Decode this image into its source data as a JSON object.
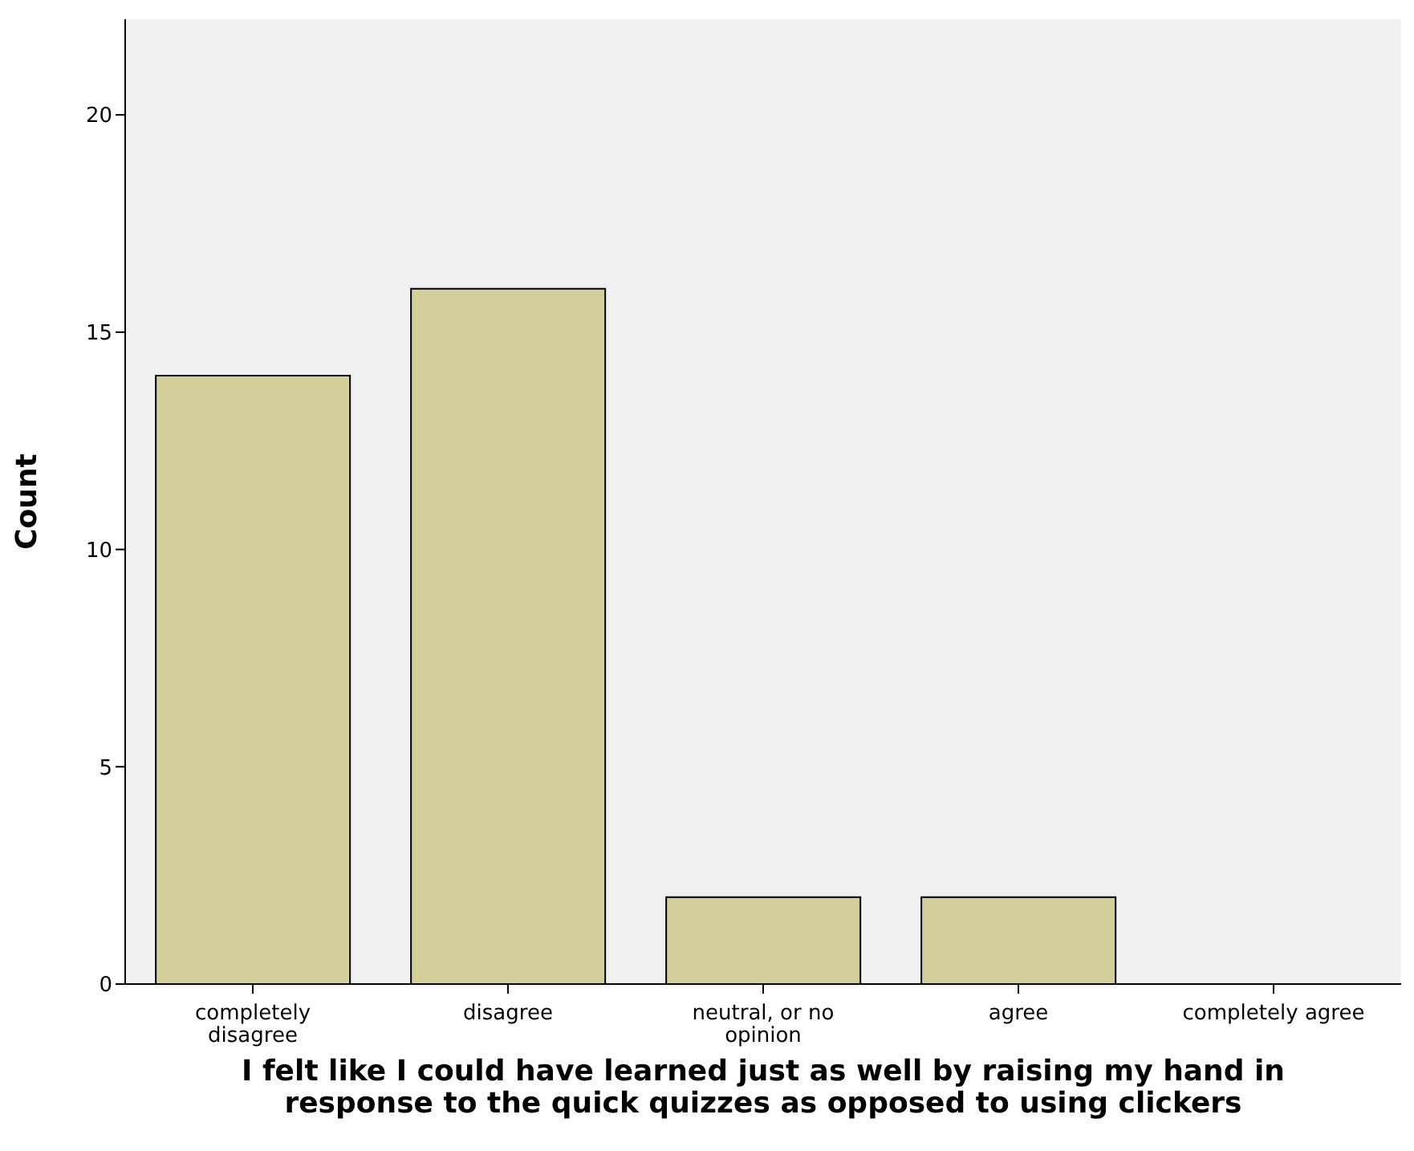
{
  "chart_data": {
    "type": "bar",
    "xlabel": "I felt like I could have learned just as well by raising my hand in response to the quick quizzes as opposed to using clickers",
    "ylabel": "Count",
    "categories": [
      "completely disagree",
      "disagree",
      "neutral, or no opinion",
      "agree",
      "completely agree"
    ],
    "values": [
      14,
      16,
      2,
      2,
      0
    ],
    "color": "#d3ce9a",
    "ylim": [
      0,
      22.2
    ],
    "yticks": [
      0,
      5,
      10,
      15,
      20
    ],
    "grid": false,
    "legend": false
  }
}
